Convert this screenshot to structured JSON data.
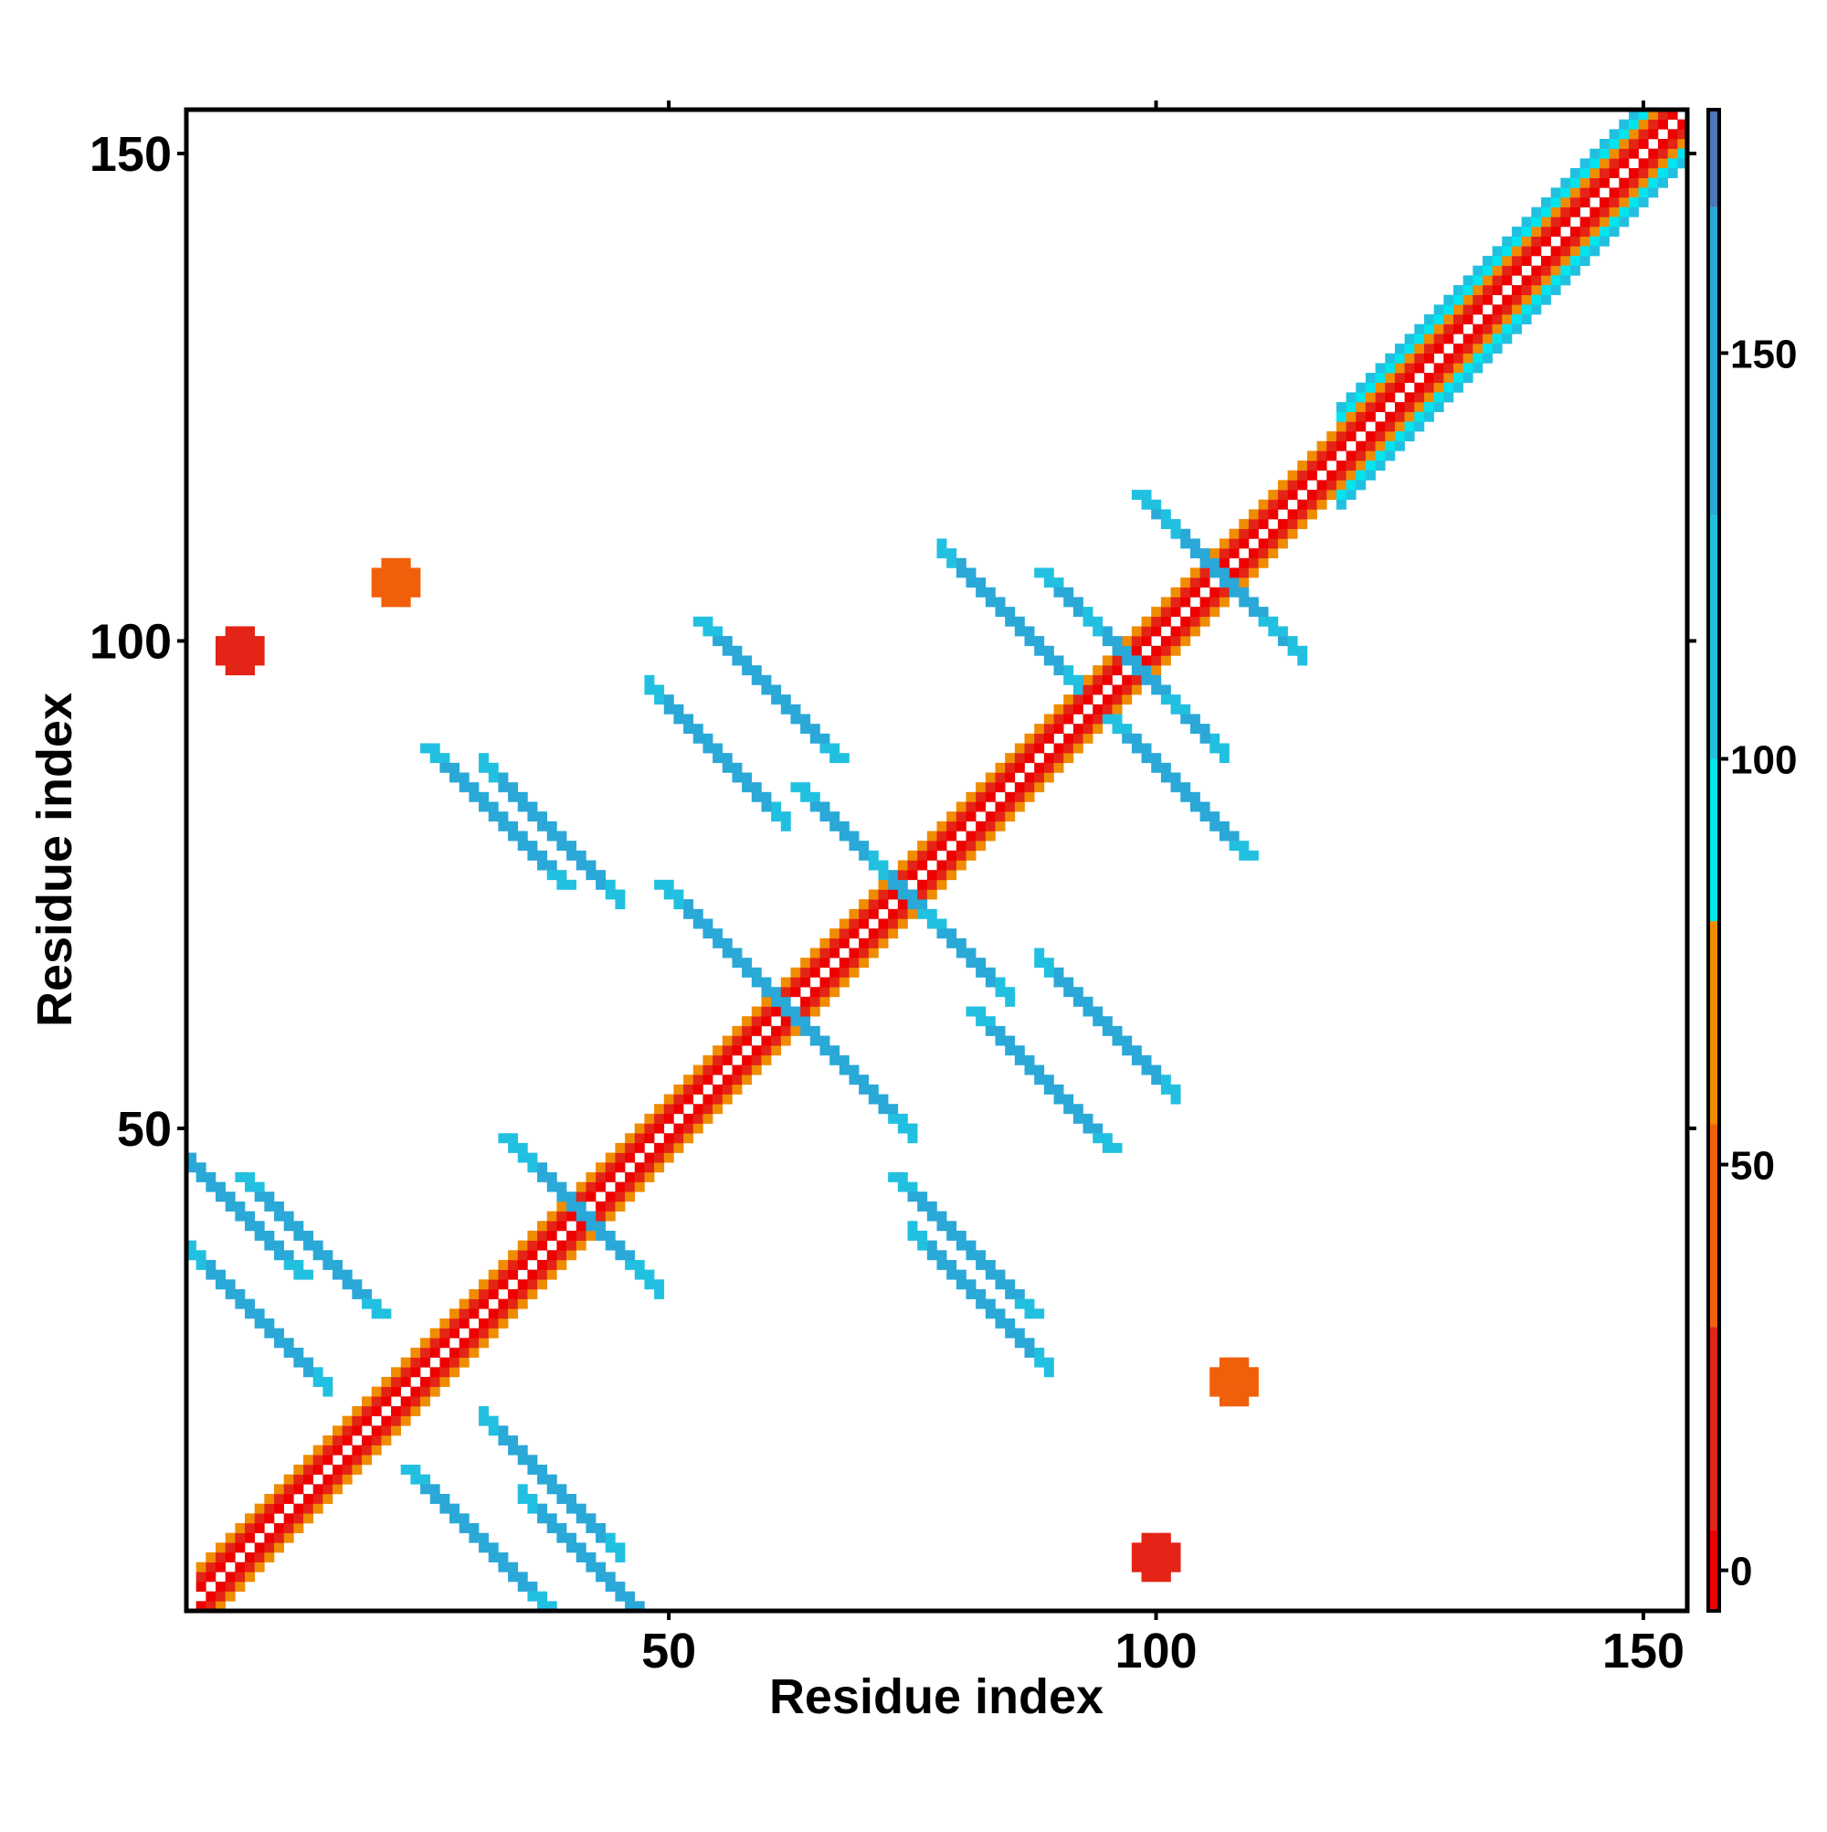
{
  "chart_data": {
    "type": "heatmap",
    "title": "",
    "xlabel": "Residue index",
    "ylabel": "Residue index",
    "xlim": [
      1,
      154
    ],
    "ylim": [
      1,
      154
    ],
    "x_ticks": [
      50,
      100,
      150
    ],
    "y_ticks": [
      50,
      100,
      150
    ],
    "grid": false,
    "colorbar": {
      "range": [
        -5,
        180
      ],
      "ticks": [
        0,
        50,
        100,
        150
      ],
      "bands": [
        {
          "from": -5,
          "to": 5,
          "color": "#ee0000"
        },
        {
          "from": 5,
          "to": 30,
          "color": "#e32416"
        },
        {
          "from": 30,
          "to": 55,
          "color": "#f0600a"
        },
        {
          "from": 55,
          "to": 80,
          "color": "#f08c00"
        },
        {
          "from": 80,
          "to": 100,
          "color": "#00e5ee"
        },
        {
          "from": 100,
          "to": 130,
          "color": "#22c0e0"
        },
        {
          "from": 130,
          "to": 168,
          "color": "#2aa8d8"
        },
        {
          "from": 168,
          "to": 180,
          "color": "#4a78b8"
        },
        {
          "from": 180,
          "to": 184,
          "color": "#ffffff"
        }
      ]
    },
    "description_of_values": "contact map; each cell value colors by colorbar",
    "structures": {
      "main_diagonal": {
        "from": 2,
        "to": 154
      },
      "antidiagonal_strands": [
        {
          "center": [
            5,
            42
          ],
          "value": 150
        },
        {
          "center": [
            13,
            38
          ],
          "value": 150
        },
        {
          "center": [
            30,
            8
          ],
          "value": 150
        },
        {
          "center": [
            40,
            42
          ],
          "value": 140
        },
        {
          "center": [
            56,
            68
          ],
          "value": 140
        },
        {
          "center": [
            67,
            57
          ],
          "value": 150
        },
        {
          "center": [
            70,
            78
          ],
          "value": 140
        },
        {
          "center": [
            32,
            82
          ],
          "value": 150
        },
        {
          "center": [
            60,
            95
          ],
          "value": 150
        },
        {
          "center": [
            80,
            38
          ],
          "value": 150
        },
        {
          "center": [
            88,
            55
          ],
          "value": 150
        },
        {
          "center": [
            95,
            100
          ],
          "value": 150
        },
        {
          "center": [
            102,
            85
          ],
          "value": 150
        },
        {
          "center": [
            105,
            108
          ],
          "value": 150
        }
      ],
      "off_diagonal_patches": [
        {
          "center": [
            22,
            106
          ],
          "value": 40
        },
        {
          "center": [
            108,
            24
          ],
          "value": 40
        },
        {
          "center": [
            6,
            99
          ],
          "value": 20
        },
        {
          "center": [
            100,
            6
          ],
          "value": 20
        }
      ]
    }
  }
}
